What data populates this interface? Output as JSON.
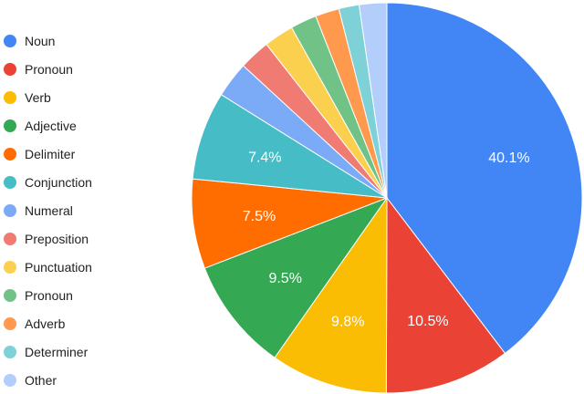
{
  "chart_data": {
    "type": "pie",
    "legend_position": "left",
    "slices": [
      {
        "label": "Noun",
        "value": 40.1,
        "color": "#4285F4",
        "value_label": "40.1%"
      },
      {
        "label": "Pronoun",
        "value": 10.5,
        "color": "#EA4335",
        "value_label": "10.5%"
      },
      {
        "label": "Verb",
        "value": 9.8,
        "color": "#FBBC04",
        "value_label": "9.8%"
      },
      {
        "label": "Adjective",
        "value": 9.5,
        "color": "#34A853",
        "value_label": "9.5%"
      },
      {
        "label": "Delimiter",
        "value": 7.5,
        "color": "#FF6D01",
        "value_label": "7.5%"
      },
      {
        "label": "Conjunction",
        "value": 7.4,
        "color": "#46BDC6",
        "value_label": "7.4%"
      },
      {
        "label": "Numeral",
        "value": 3.0,
        "color": "#7BAAF7",
        "value_label": ""
      },
      {
        "label": "Preposition",
        "value": 2.6,
        "color": "#F07B72",
        "value_label": ""
      },
      {
        "label": "Punctuation",
        "value": 2.5,
        "color": "#FCD04F",
        "value_label": ""
      },
      {
        "label": "Pronoun",
        "value": 2.2,
        "color": "#71C287",
        "value_label": ""
      },
      {
        "label": "Adverb",
        "value": 2.0,
        "color": "#FF994D",
        "value_label": ""
      },
      {
        "label": "Determiner",
        "value": 1.7,
        "color": "#7ED1D7",
        "value_label": ""
      },
      {
        "label": "Other",
        "value": 2.3,
        "color": "#B3CEFB",
        "value_label": ""
      }
    ]
  }
}
